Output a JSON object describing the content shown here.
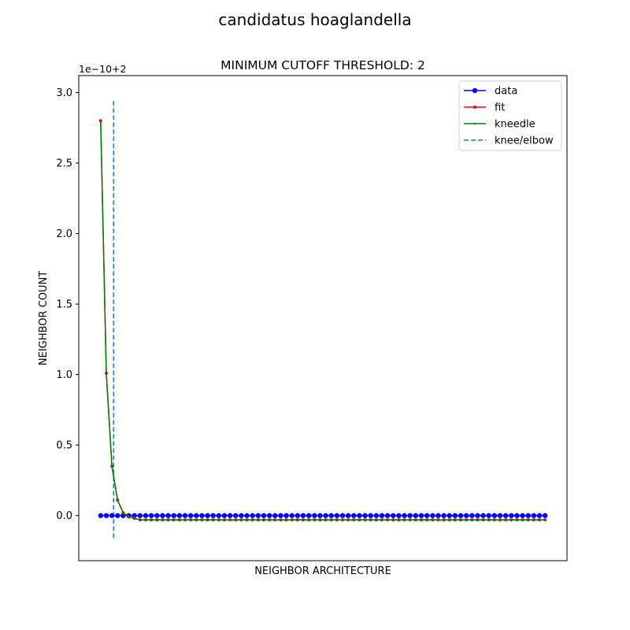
{
  "figure": {
    "suptitle": "candidatus hoaglandella"
  },
  "chart_data": {
    "type": "line",
    "title": "MINIMUM CUTOFF THRESHOLD: 2",
    "xlabel": "NEIGHBOR ARCHITECTURE",
    "ylabel": "NEIGHBOR COUNT",
    "y_offset_label": "1e−10+2",
    "x_tick_labels_shown": false,
    "xlim": [
      -3.9,
      82.9
    ],
    "ylim": [
      -0.32,
      3.12
    ],
    "y_ticks": [
      0.0,
      0.5,
      1.0,
      1.5,
      2.0,
      2.5,
      3.0
    ],
    "y_tick_labels": [
      "0.0",
      "0.5",
      "1.0",
      "1.5",
      "2.0",
      "2.5",
      "3.0"
    ],
    "grid": false,
    "legend": {
      "placement": "upper right",
      "entries": [
        "data",
        "fit",
        "kneedle",
        "knee/elbow"
      ]
    },
    "series": [
      {
        "name": "data",
        "color": "#0000ff",
        "marker": "circle",
        "x": [
          0,
          1,
          2,
          3,
          4,
          5,
          6,
          7,
          8,
          9,
          10,
          11,
          12,
          13,
          14,
          15,
          16,
          17,
          18,
          19,
          20,
          21,
          22,
          23,
          24,
          25,
          26,
          27,
          28,
          29,
          30,
          31,
          32,
          33,
          34,
          35,
          36,
          37,
          38,
          39,
          40,
          41,
          42,
          43,
          44,
          45,
          46,
          47,
          48,
          49,
          50,
          51,
          52,
          53,
          54,
          55,
          56,
          57,
          58,
          59,
          60,
          61,
          62,
          63,
          64,
          65,
          66,
          67,
          68,
          69,
          70,
          71,
          72,
          73,
          74,
          75,
          76,
          77,
          78,
          79
        ],
        "y": [
          0,
          0,
          0,
          0,
          0,
          0,
          0,
          0,
          0,
          0,
          0,
          0,
          0,
          0,
          0,
          0,
          0,
          0,
          0,
          0,
          0,
          0,
          0,
          0,
          0,
          0,
          0,
          0,
          0,
          0,
          0,
          0,
          0,
          0,
          0,
          0,
          0,
          0,
          0,
          0,
          0,
          0,
          0,
          0,
          0,
          0,
          0,
          0,
          0,
          0,
          0,
          0,
          0,
          0,
          0,
          0,
          0,
          0,
          0,
          0,
          0,
          0,
          0,
          0,
          0,
          0,
          0,
          0,
          0,
          0,
          0,
          0,
          0,
          0,
          0,
          0,
          0,
          0,
          0,
          0
        ]
      },
      {
        "name": "fit",
        "color": "#ff0000",
        "marker": "point",
        "x": [
          0,
          1,
          2,
          3,
          4,
          5,
          6,
          7,
          8,
          9,
          10,
          11,
          12,
          13,
          14,
          15,
          16,
          17,
          18,
          19,
          20,
          21,
          22,
          23,
          24,
          25,
          26,
          27,
          28,
          29,
          30,
          31,
          32,
          33,
          34,
          35,
          36,
          37,
          38,
          39,
          40,
          41,
          42,
          43,
          44,
          45,
          46,
          47,
          48,
          49,
          50,
          51,
          52,
          53,
          54,
          55,
          56,
          57,
          58,
          59,
          60,
          61,
          62,
          63,
          64,
          65,
          66,
          67,
          68,
          69,
          70,
          71,
          72,
          73,
          74,
          75,
          76,
          77,
          78,
          79
        ],
        "y": [
          2.8,
          1.01,
          0.35,
          0.11,
          0.02,
          -0.01,
          -0.02,
          -0.03,
          -0.03,
          -0.03,
          -0.03,
          -0.03,
          -0.03,
          -0.03,
          -0.03,
          -0.03,
          -0.03,
          -0.03,
          -0.03,
          -0.03,
          -0.03,
          -0.03,
          -0.03,
          -0.03,
          -0.03,
          -0.03,
          -0.03,
          -0.03,
          -0.03,
          -0.03,
          -0.03,
          -0.03,
          -0.03,
          -0.03,
          -0.03,
          -0.03,
          -0.03,
          -0.03,
          -0.03,
          -0.03,
          -0.03,
          -0.03,
          -0.03,
          -0.03,
          -0.03,
          -0.03,
          -0.03,
          -0.03,
          -0.03,
          -0.03,
          -0.03,
          -0.03,
          -0.03,
          -0.03,
          -0.03,
          -0.03,
          -0.03,
          -0.03,
          -0.03,
          -0.03,
          -0.03,
          -0.03,
          -0.03,
          -0.03,
          -0.03,
          -0.03,
          -0.03,
          -0.03,
          -0.03,
          -0.03,
          -0.03,
          -0.03,
          -0.03,
          -0.03,
          -0.03,
          -0.03,
          -0.03,
          -0.03,
          -0.03,
          -0.03
        ]
      },
      {
        "name": "kneedle",
        "color": "#008000",
        "marker": "small-point",
        "x": [
          0,
          1,
          2,
          3,
          4,
          5,
          6,
          7,
          8,
          9,
          10,
          11,
          12,
          13,
          14,
          15,
          16,
          17,
          18,
          19,
          20,
          21,
          22,
          23,
          24,
          25,
          26,
          27,
          28,
          29,
          30,
          31,
          32,
          33,
          34,
          35,
          36,
          37,
          38,
          39,
          40,
          41,
          42,
          43,
          44,
          45,
          46,
          47,
          48,
          49,
          50,
          51,
          52,
          53,
          54,
          55,
          56,
          57,
          58,
          59,
          60,
          61,
          62,
          63,
          64,
          65,
          66,
          67,
          68,
          69,
          70,
          71,
          72,
          73,
          74,
          75,
          76,
          77,
          78,
          79
        ],
        "y": [
          2.8,
          1.01,
          0.35,
          0.11,
          0.02,
          -0.01,
          -0.02,
          -0.03,
          -0.03,
          -0.03,
          -0.03,
          -0.03,
          -0.03,
          -0.03,
          -0.03,
          -0.03,
          -0.03,
          -0.03,
          -0.03,
          -0.03,
          -0.03,
          -0.03,
          -0.03,
          -0.03,
          -0.03,
          -0.03,
          -0.03,
          -0.03,
          -0.03,
          -0.03,
          -0.03,
          -0.03,
          -0.03,
          -0.03,
          -0.03,
          -0.03,
          -0.03,
          -0.03,
          -0.03,
          -0.03,
          -0.03,
          -0.03,
          -0.03,
          -0.03,
          -0.03,
          -0.03,
          -0.03,
          -0.03,
          -0.03,
          -0.03,
          -0.03,
          -0.03,
          -0.03,
          -0.03,
          -0.03,
          -0.03,
          -0.03,
          -0.03,
          -0.03,
          -0.03,
          -0.03,
          -0.03,
          -0.03,
          -0.03,
          -0.03,
          -0.03,
          -0.03,
          -0.03,
          -0.03,
          -0.03,
          -0.03,
          -0.03,
          -0.03,
          -0.03,
          -0.03,
          -0.03,
          -0.03,
          -0.03,
          -0.03,
          -0.03
        ]
      }
    ],
    "knee": {
      "name": "knee/elbow",
      "color": "#1f77b4",
      "style": "dashed",
      "x": 2.3,
      "y_range": [
        -0.16,
        2.94
      ]
    }
  }
}
